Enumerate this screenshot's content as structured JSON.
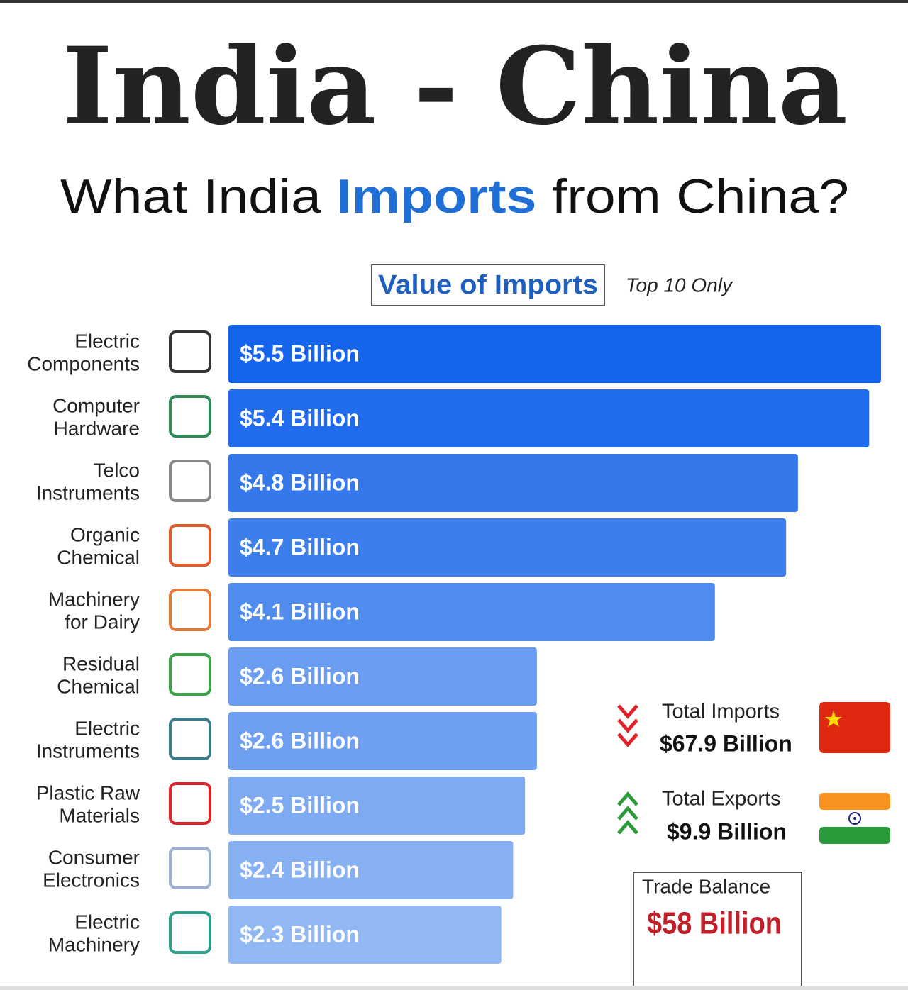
{
  "chart_data": {
    "type": "bar",
    "title": "India - China",
    "subtitle": [
      "What India ",
      "Imports",
      " from China?"
    ],
    "legend": "Value of Imports",
    "note": "Top 10 Only",
    "categories": [
      [
        "Electric",
        "Components"
      ],
      [
        "Computer",
        "Hardware"
      ],
      [
        "Telco",
        "Instruments"
      ],
      [
        "Organic",
        "Chemical"
      ],
      [
        "Machinery",
        "for Dairy"
      ],
      [
        "Residual",
        "Chemical"
      ],
      [
        "Electric",
        "Instruments"
      ],
      [
        "Plastic Raw",
        "Materials"
      ],
      [
        "Consumer",
        "Electronics"
      ],
      [
        "Electric",
        "Machinery"
      ]
    ],
    "values": [
      5.5,
      5.4,
      4.8,
      4.7,
      4.1,
      2.6,
      2.6,
      2.5,
      2.4,
      2.3
    ],
    "value_labels": [
      "$5.5 Billion",
      "$5.4 Billion",
      "$4.8 Billion",
      "$4.7 Billion",
      "$4.1 Billion",
      "$2.6 Billion",
      "$2.6 Billion",
      "$2.5 Billion",
      "$2.4 Billion",
      "$2.3 Billion"
    ],
    "colors": [
      "#1464ec",
      "#206cec",
      "#3478ec",
      "#3c7eec",
      "#508cee",
      "#6a9cf0",
      "#6e9ff0",
      "#7eaaf2",
      "#88b1f3",
      "#92b8f4"
    ],
    "summary": {
      "imports_label": "Total Imports",
      "imports_value": "$67.9 Billion",
      "exports_label": "Total Exports",
      "exports_value": "$9.9 Billion",
      "balance_label": "Trade Balance",
      "balance_value": "$58 Billion"
    }
  }
}
